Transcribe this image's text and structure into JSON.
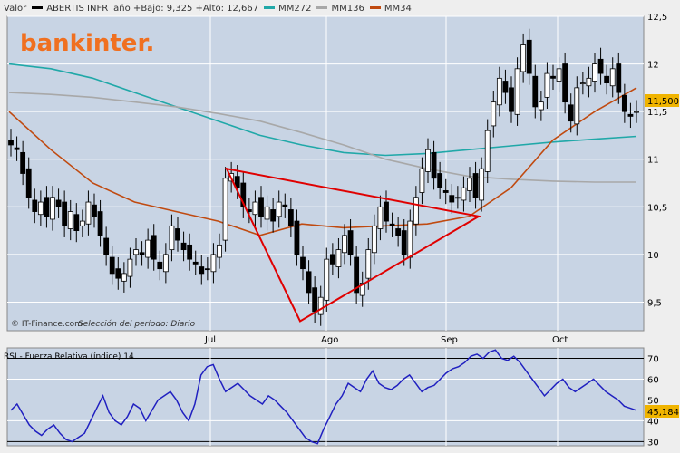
{
  "header": {
    "label_valor": "Valor",
    "ticker": "ABERTIS INFR",
    "range_text": "año +Bajo: 9,325 +Alto: 12,667",
    "legend": [
      {
        "name": "MM272",
        "color": "#20a8a8"
      },
      {
        "name": "MM136",
        "color": "#a8a8a8"
      },
      {
        "name": "MM34",
        "color": "#c04a10"
      }
    ],
    "ticker_color": "#000000"
  },
  "brand": "bankinter.",
  "footer_left": "© IT-Finance.com",
  "footer_period": "Selección del período: Diario",
  "rsi_title": "RSI - Fuerza Relativa (índice) 14",
  "last_price": "11,500",
  "last_rsi": "45,184",
  "chart_data": [
    {
      "type": "candlestick",
      "title": "ABERTIS INFR",
      "x_labels": [
        "Jul",
        "Ago",
        "Sep",
        "Oct"
      ],
      "ylim": [
        9.2,
        12.5
      ],
      "y_ticks": [
        "9,5",
        "10",
        "10,5",
        "11",
        "11,5",
        "12",
        "12,5"
      ],
      "closes": [
        11.15,
        11.1,
        10.85,
        10.6,
        10.45,
        10.55,
        10.4,
        10.6,
        10.5,
        10.3,
        10.45,
        10.25,
        10.35,
        10.55,
        10.4,
        10.2,
        10.0,
        9.8,
        9.75,
        9.8,
        9.95,
        10.05,
        10.0,
        10.15,
        9.95,
        9.85,
        10.0,
        10.3,
        10.15,
        10.05,
        9.95,
        9.9,
        9.8,
        9.85,
        10.0,
        10.1,
        10.8,
        10.85,
        10.7,
        10.5,
        10.45,
        10.55,
        10.4,
        10.5,
        10.35,
        10.55,
        10.5,
        10.3,
        10.0,
        9.85,
        9.6,
        9.4,
        9.55,
        9.95,
        9.9,
        10.05,
        10.2,
        10.0,
        9.6,
        9.7,
        10.05,
        10.3,
        10.5,
        10.35,
        10.3,
        10.2,
        10.0,
        10.35,
        10.6,
        10.9,
        11.1,
        10.8,
        10.7,
        10.65,
        10.55,
        10.6,
        10.7,
        10.8,
        10.6,
        10.9,
        11.3,
        11.6,
        11.85,
        11.7,
        11.5,
        11.95,
        12.2,
        11.9,
        11.55,
        11.6,
        11.9,
        11.85,
        11.95,
        11.6,
        11.4,
        11.75,
        11.8,
        11.85,
        12.0,
        11.9,
        11.8,
        11.95,
        11.7,
        11.5,
        11.45,
        11.5
      ],
      "series": [
        {
          "name": "MM272",
          "color": "#20a8a8",
          "values": [
            12.0,
            11.95,
            11.85,
            11.7,
            11.55,
            11.4,
            11.25,
            11.15,
            11.07,
            11.04,
            11.06,
            11.1,
            11.14,
            11.18,
            11.21,
            11.24
          ]
        },
        {
          "name": "MM136",
          "color": "#a8a8a8",
          "values": [
            11.7,
            11.68,
            11.65,
            11.6,
            11.55,
            11.48,
            11.4,
            11.28,
            11.15,
            11.0,
            10.9,
            10.82,
            10.79,
            10.77,
            10.76,
            10.76
          ]
        },
        {
          "name": "MM34",
          "color": "#c04a10",
          "values": [
            11.5,
            11.1,
            10.75,
            10.55,
            10.45,
            10.35,
            10.2,
            10.32,
            10.28,
            10.3,
            10.32,
            10.4,
            10.7,
            11.2,
            11.5,
            11.75
          ]
        }
      ],
      "annotations": [
        {
          "type": "triangle",
          "points": [
            [
              10.9
            ],
            [
              9.3
            ],
            [
              10.4
            ]
          ],
          "color": "#e00000"
        }
      ]
    },
    {
      "type": "line",
      "title": "RSI - Fuerza Relativa (índice) 14",
      "ylim": [
        28,
        75
      ],
      "y_ticks": [
        "30",
        "40",
        "50",
        "60",
        "70"
      ],
      "series": [
        {
          "name": "RSI",
          "color": "#2020c0",
          "values": [
            45,
            48,
            43,
            38,
            35,
            33,
            36,
            38,
            34,
            31,
            30,
            32,
            34,
            40,
            46,
            52,
            44,
            40,
            38,
            42,
            48,
            46,
            40,
            45,
            50,
            52,
            54,
            50,
            44,
            40,
            48,
            62,
            66,
            67,
            60,
            54,
            56,
            58,
            55,
            52,
            50,
            48,
            52,
            50,
            47,
            44,
            40,
            36,
            32,
            30,
            29,
            36,
            42,
            48,
            52,
            58,
            56,
            54,
            60,
            64,
            58,
            56,
            55,
            57,
            60,
            62,
            58,
            54,
            56,
            57,
            60,
            63,
            65,
            66,
            68,
            71,
            72,
            70,
            73,
            74,
            70,
            69,
            71,
            68,
            64,
            60,
            56,
            52,
            55,
            58,
            60,
            56,
            54,
            56,
            58,
            60,
            57,
            54,
            52,
            50,
            47,
            46,
            45
          ]
        }
      ],
      "hlines": [
        70,
        30
      ]
    }
  ]
}
